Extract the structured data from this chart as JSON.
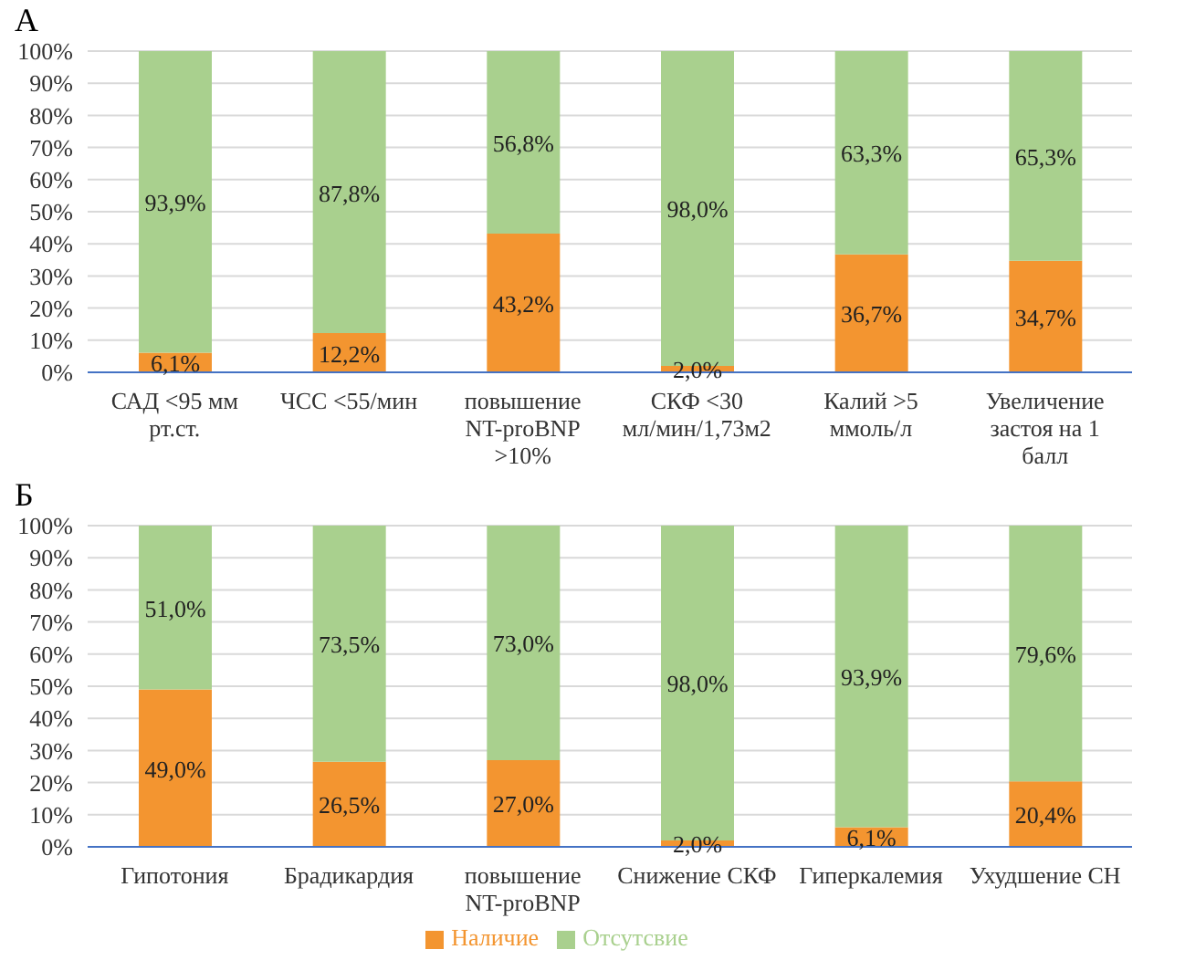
{
  "chart_data": [
    {
      "type": "bar",
      "title": "А",
      "stacked": true,
      "categories": [
        "САД <95 мм рт.ст.",
        "ЧСС <55/мин",
        "повышение NT-proBNP >10%",
        "СКФ <30 мл/мин/1,73м2",
        "Калий >5 ммоль/л",
        "Увеличение застоя на 1 балл"
      ],
      "series": [
        {
          "color": "#f39530",
          "values": [
            6.1,
            12.2,
            43.2,
            2.0,
            36.7,
            34.7
          ],
          "value_labels": [
            "6,1%",
            "12,2%",
            "43,2%",
            "2,0%",
            "36,7%",
            "34,7%"
          ]
        },
        {
          "color": "#a9d08e",
          "values": [
            93.9,
            87.8,
            56.8,
            98.0,
            63.3,
            65.3
          ],
          "value_labels": [
            "93,9%",
            "87,8%",
            "56,8%",
            "98,0%",
            "63,3%",
            "65,3%"
          ]
        }
      ],
      "ylim": [
        0,
        100
      ],
      "yticks": [
        {
          "value": 0,
          "label": "0%"
        },
        {
          "value": 10,
          "label": "10%"
        },
        {
          "value": 20,
          "label": "20%"
        },
        {
          "value": 30,
          "label": "30%"
        },
        {
          "value": 40,
          "label": "40%"
        },
        {
          "value": 50,
          "label": "50%"
        },
        {
          "value": 60,
          "label": "60%"
        },
        {
          "value": 70,
          "label": "70%"
        },
        {
          "value": 80,
          "label": "80%"
        },
        {
          "value": 90,
          "label": "90%"
        },
        {
          "value": 100,
          "label": "100%"
        }
      ],
      "grid": "y",
      "legend": false
    },
    {
      "type": "bar",
      "title": "Б",
      "stacked": true,
      "categories": [
        "Гипотония",
        "Брадикардия",
        "повышение NT-proBNP",
        "Снижение СКФ",
        "Гиперкалемия",
        "Ухудшение СН"
      ],
      "series": [
        {
          "name": "Наличие",
          "color": "#f39530",
          "values": [
            49.0,
            26.5,
            27.0,
            2.0,
            6.1,
            20.4
          ],
          "value_labels": [
            "49,0%",
            "26,5%",
            "27,0%",
            "2,0%",
            "6,1%",
            "20,4%"
          ]
        },
        {
          "name": "Отсутсвие",
          "color": "#a9d08e",
          "values": [
            51.0,
            73.5,
            73.0,
            98.0,
            93.9,
            79.6
          ],
          "value_labels": [
            "51,0%",
            "73,5%",
            "73,0%",
            "98,0%",
            "93,9%",
            "79,6%"
          ]
        }
      ],
      "ylim": [
        0,
        100
      ],
      "yticks": [
        {
          "value": 0,
          "label": "0%"
        },
        {
          "value": 10,
          "label": "10%"
        },
        {
          "value": 20,
          "label": "20%"
        },
        {
          "value": 30,
          "label": "30%"
        },
        {
          "value": 40,
          "label": "40%"
        },
        {
          "value": 50,
          "label": "50%"
        },
        {
          "value": 60,
          "label": "60%"
        },
        {
          "value": 70,
          "label": "70%"
        },
        {
          "value": 80,
          "label": "80%"
        },
        {
          "value": 90,
          "label": "90%"
        },
        {
          "value": 100,
          "label": "100%"
        }
      ],
      "grid": "y",
      "legend": "bottom"
    }
  ]
}
